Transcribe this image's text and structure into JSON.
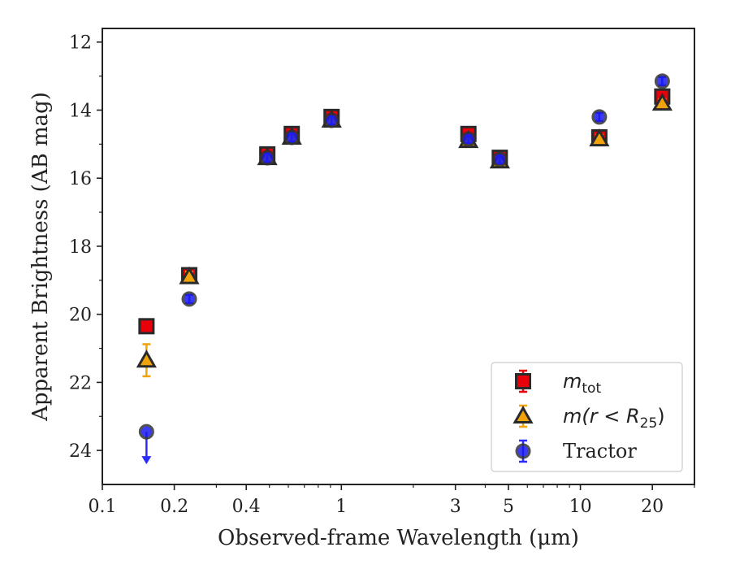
{
  "chart_data": {
    "type": "scatter",
    "title": "",
    "xlabel": "Observed-frame Wavelength (μm)",
    "ylabel": "Apparent Brightness (AB mag)",
    "xscale": "log",
    "xlim": [
      0.1,
      30
    ],
    "ylim": [
      25.0,
      11.6
    ],
    "y_inverted": true,
    "grid": false,
    "legend_position": "bottom-right",
    "x_ticks": [
      {
        "value": 0.1,
        "label": "0.1"
      },
      {
        "value": 0.2,
        "label": "0.2"
      },
      {
        "value": 0.4,
        "label": "0.4"
      },
      {
        "value": 1,
        "label": "1"
      },
      {
        "value": 3,
        "label": "3"
      },
      {
        "value": 5,
        "label": "5"
      },
      {
        "value": 10,
        "label": "10"
      },
      {
        "value": 20,
        "label": "20"
      }
    ],
    "y_ticks": [
      {
        "value": 12,
        "label": "12"
      },
      {
        "value": 14,
        "label": "14"
      },
      {
        "value": 16,
        "label": "16"
      },
      {
        "value": 18,
        "label": "18"
      },
      {
        "value": 20,
        "label": "20"
      },
      {
        "value": 22,
        "label": "22"
      },
      {
        "value": 24,
        "label": "24"
      }
    ],
    "series": [
      {
        "name": "m_tot",
        "legend_label": {
          "base": "m",
          "sub": "tot"
        },
        "marker": "square",
        "color": "#e8000b",
        "ecolor": "#e8000b",
        "x": [
          0.153,
          0.231,
          0.49,
          0.62,
          0.91,
          3.4,
          4.6,
          12.0,
          22.0
        ],
        "y": [
          20.35,
          18.85,
          15.3,
          14.7,
          14.2,
          14.7,
          15.4,
          14.8,
          13.6
        ],
        "yerr": [
          0.05,
          0.05,
          0.05,
          0.05,
          0.05,
          0.05,
          0.05,
          0.05,
          0.05
        ]
      },
      {
        "name": "m(r<R25)",
        "legend_label": {
          "base": "m(r < R",
          "sub": "25",
          "tail": ")"
        },
        "marker": "triangle",
        "color": "#f0a30a",
        "ecolor": "#f0a30a",
        "x": [
          0.153,
          0.231,
          0.49,
          0.62,
          0.91,
          3.4,
          4.6,
          12.0,
          22.0
        ],
        "y": [
          21.35,
          18.9,
          15.4,
          14.8,
          14.3,
          14.9,
          15.5,
          14.85,
          13.8
        ],
        "yerr": [
          0.4,
          0.08,
          0.05,
          0.05,
          0.05,
          0.05,
          0.05,
          0.05,
          0.05
        ]
      },
      {
        "name": "Tractor",
        "legend_label": {
          "base": "Tractor"
        },
        "marker": "circle",
        "color": "#1a1af0",
        "ecolor": "#2b2bff",
        "x": [
          0.153,
          0.231,
          0.49,
          0.62,
          0.91,
          3.4,
          4.6,
          12.0,
          22.0
        ],
        "y": [
          23.45,
          19.55,
          15.4,
          14.8,
          14.3,
          14.85,
          15.45,
          14.2,
          13.15
        ],
        "yerr": [
          0.05,
          0.05,
          0.05,
          0.05,
          0.05,
          0.05,
          0.05,
          0.05,
          0.05
        ],
        "upper_limit_index": 0
      }
    ]
  }
}
